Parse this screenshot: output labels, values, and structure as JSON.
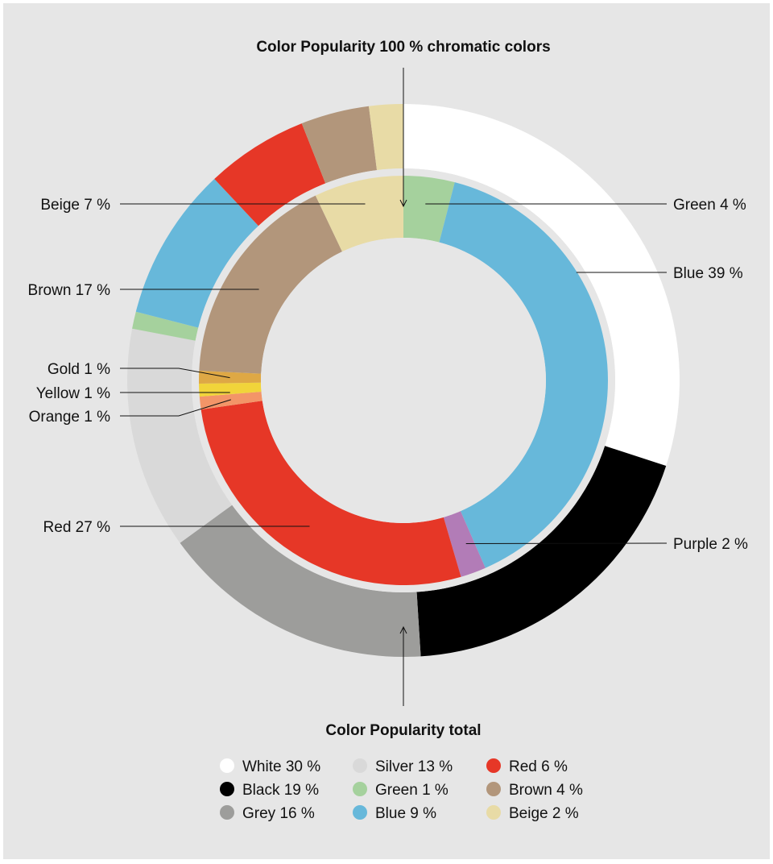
{
  "chart_data": {
    "type": "pie",
    "variant": "nested-donut",
    "titles": {
      "inner": "Color Popularity  100 % chromatic colors",
      "outer": "Color Popularity total"
    },
    "inner_ring": {
      "slices": [
        {
          "name": "Green",
          "value": 4,
          "label": "Green 4 %",
          "color": "#a5d19d",
          "side": "right"
        },
        {
          "name": "Blue",
          "value": 39,
          "label": "Blue 39 %",
          "color": "#67b8da",
          "side": "right"
        },
        {
          "name": "Purple",
          "value": 2,
          "label": "Purple 2 %",
          "color": "#b27cb7",
          "side": "right"
        },
        {
          "name": "Red",
          "value": 27,
          "label": "Red 27 %",
          "color": "#e63727",
          "side": "left"
        },
        {
          "name": "Orange",
          "value": 1,
          "label": "Orange 1 %",
          "color": "#f39568",
          "side": "left"
        },
        {
          "name": "Yellow",
          "value": 1,
          "label": "Yellow 1 %",
          "color": "#f1d43a",
          "side": "left"
        },
        {
          "name": "Gold",
          "value": 1,
          "label": "Gold 1 %",
          "color": "#dea845",
          "side": "left"
        },
        {
          "name": "Brown",
          "value": 17,
          "label": "Brown 17 %",
          "color": "#b2967b",
          "side": "left"
        },
        {
          "name": "Beige",
          "value": 7,
          "label": "Beige 7 %",
          "color": "#e8dba6",
          "side": "left"
        }
      ]
    },
    "outer_ring": {
      "slices": [
        {
          "name": "White",
          "value": 30,
          "label": "White 30 %",
          "color": "#ffffff"
        },
        {
          "name": "Black",
          "value": 19,
          "label": "Black 19 %",
          "color": "#000000"
        },
        {
          "name": "Grey",
          "value": 16,
          "label": "Grey 16 %",
          "color": "#9d9d9b"
        },
        {
          "name": "Silver",
          "value": 13,
          "label": "Silver 13 %",
          "color": "#d9d9d9"
        },
        {
          "name": "Green",
          "value": 1,
          "label": "Green 1 %",
          "color": "#a5d19d"
        },
        {
          "name": "Blue",
          "value": 9,
          "label": "Blue 9 %",
          "color": "#67b8da"
        },
        {
          "name": "Red",
          "value": 6,
          "label": "Red 6 %",
          "color": "#e63727"
        },
        {
          "name": "Brown",
          "value": 4,
          "label": "Brown 4 %",
          "color": "#b2967b"
        },
        {
          "name": "Beige",
          "value": 2,
          "label": "Beige 2 %",
          "color": "#e8dba6"
        }
      ]
    },
    "legend_columns": [
      [
        "White 30 %",
        "Black 19 %",
        "Grey 16 %"
      ],
      [
        "Silver 13 %",
        "Green 1 %",
        "Blue 9 %"
      ],
      [
        "Red 6 %",
        "Brown 4 %",
        "Beige 2 %"
      ]
    ],
    "legend_colors": [
      [
        "#ffffff",
        "#000000",
        "#9d9d9b"
      ],
      [
        "#d9d9d9",
        "#a5d19d",
        "#67b8da"
      ],
      [
        "#e63727",
        "#b2967b",
        "#e8dba6"
      ]
    ]
  }
}
